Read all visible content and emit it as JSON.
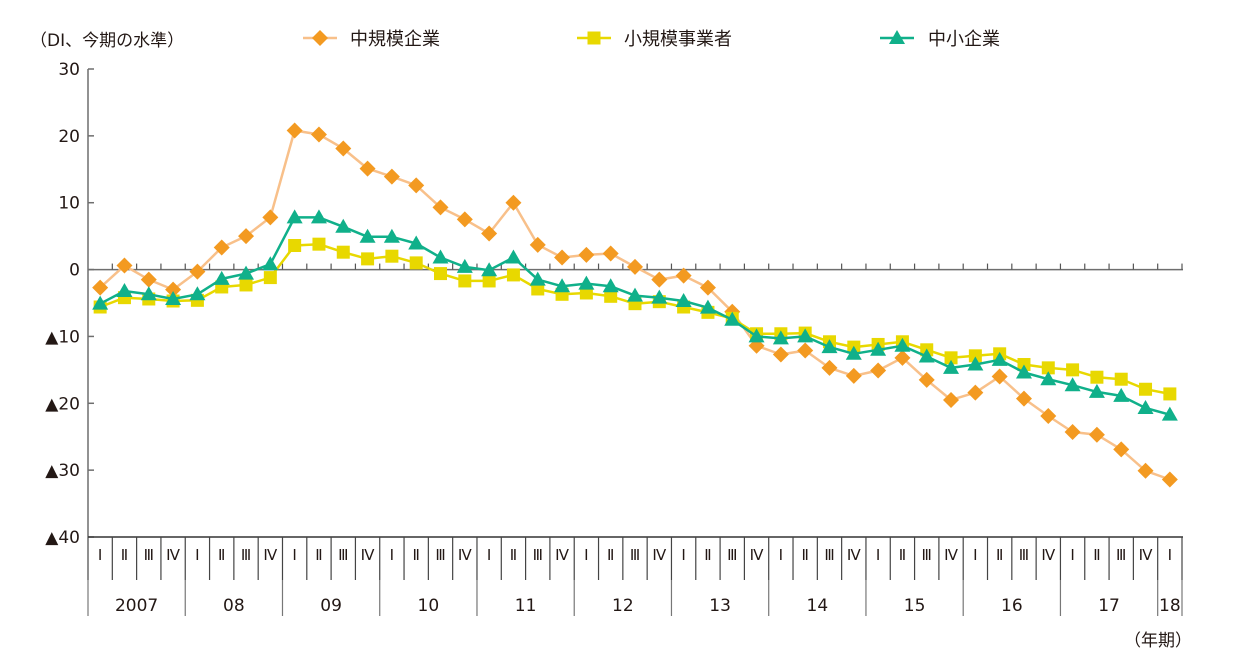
{
  "chart_data": {
    "type": "line",
    "title": "",
    "ylabel": "（DI、今期の水準）",
    "xlabel": "（年期）",
    "ylim": [
      -40,
      30
    ],
    "y_ticks": [
      30,
      20,
      10,
      0,
      -10,
      -20,
      -30,
      -40
    ],
    "y_tick_labels": [
      "30",
      "20",
      "10",
      "0",
      "▲10",
      "▲20",
      "▲30",
      "▲40"
    ],
    "grid": false,
    "legend_position": "top",
    "quarter_labels": [
      "Ⅰ",
      "Ⅱ",
      "Ⅲ",
      "Ⅳ",
      "Ⅰ",
      "Ⅱ",
      "Ⅲ",
      "Ⅳ",
      "Ⅰ",
      "Ⅱ",
      "Ⅲ",
      "Ⅳ",
      "Ⅰ",
      "Ⅱ",
      "Ⅲ",
      "Ⅳ",
      "Ⅰ",
      "Ⅱ",
      "Ⅲ",
      "Ⅳ",
      "Ⅰ",
      "Ⅱ",
      "Ⅲ",
      "Ⅳ",
      "Ⅰ",
      "Ⅱ",
      "Ⅲ",
      "Ⅳ",
      "Ⅰ",
      "Ⅱ",
      "Ⅲ",
      "Ⅳ",
      "Ⅰ",
      "Ⅱ",
      "Ⅲ",
      "Ⅳ",
      "Ⅰ",
      "Ⅱ",
      "Ⅲ",
      "Ⅳ",
      "Ⅰ",
      "Ⅱ",
      "Ⅲ",
      "Ⅳ",
      "Ⅰ"
    ],
    "years": [
      {
        "label": "2007",
        "quarters": 4
      },
      {
        "label": "08",
        "quarters": 4
      },
      {
        "label": "09",
        "quarters": 4
      },
      {
        "label": "10",
        "quarters": 4
      },
      {
        "label": "11",
        "quarters": 4
      },
      {
        "label": "12",
        "quarters": 4
      },
      {
        "label": "13",
        "quarters": 4
      },
      {
        "label": "14",
        "quarters": 4
      },
      {
        "label": "15",
        "quarters": 4
      },
      {
        "label": "16",
        "quarters": 4
      },
      {
        "label": "17",
        "quarters": 4
      },
      {
        "label": "18",
        "quarters": 1
      }
    ],
    "series": [
      {
        "name": "中規模企業",
        "marker": "diamond",
        "color": "#f39a21",
        "line_color": "#f8c08a",
        "values": [
          -2.7,
          0.6,
          -1.5,
          -3.0,
          -0.3,
          3.3,
          5.0,
          7.8,
          20.8,
          20.2,
          18.1,
          15.1,
          13.9,
          12.6,
          9.3,
          7.5,
          5.4,
          10.0,
          3.7,
          1.8,
          2.2,
          2.4,
          0.4,
          -1.5,
          -0.9,
          -2.7,
          -6.3,
          -11.4,
          -12.7,
          -12.1,
          -14.7,
          -15.9,
          -15.1,
          -13.2,
          -16.5,
          -19.5,
          -18.4,
          -16.0,
          -19.3,
          -21.9,
          -24.3,
          -24.7,
          -26.9,
          -30.1,
          -31.4
        ]
      },
      {
        "name": "小規模事業者",
        "marker": "square",
        "color": "#e8d800",
        "line_color": "#e8d800",
        "values": [
          -5.6,
          -4.2,
          -4.4,
          -4.7,
          -4.6,
          -2.6,
          -2.3,
          -1.2,
          3.6,
          3.8,
          2.6,
          1.6,
          2.0,
          1.0,
          -0.6,
          -1.7,
          -1.7,
          -0.8,
          -2.9,
          -3.7,
          -3.5,
          -4.0,
          -5.1,
          -4.8,
          -5.6,
          -6.4,
          -7.3,
          -9.6,
          -9.6,
          -9.5,
          -10.8,
          -11.6,
          -11.2,
          -10.8,
          -12.0,
          -13.2,
          -12.9,
          -12.6,
          -14.2,
          -14.7,
          -15.0,
          -16.1,
          -16.4,
          -17.9,
          -18.6
        ]
      },
      {
        "name": "中小企業",
        "marker": "triangle",
        "color": "#10b08a",
        "line_color": "#10b08a",
        "values": [
          -5.1,
          -3.2,
          -3.7,
          -4.4,
          -3.7,
          -1.4,
          -0.6,
          0.8,
          7.8,
          7.8,
          6.4,
          4.9,
          4.9,
          3.9,
          1.8,
          0.4,
          -0.1,
          1.8,
          -1.5,
          -2.5,
          -2.1,
          -2.5,
          -3.9,
          -4.2,
          -4.7,
          -5.7,
          -7.5,
          -10.0,
          -10.3,
          -10.0,
          -11.6,
          -12.6,
          -12.0,
          -11.4,
          -13.0,
          -14.7,
          -14.2,
          -13.5,
          -15.4,
          -16.4,
          -17.3,
          -18.3,
          -18.9,
          -20.7,
          -21.7
        ]
      }
    ]
  }
}
